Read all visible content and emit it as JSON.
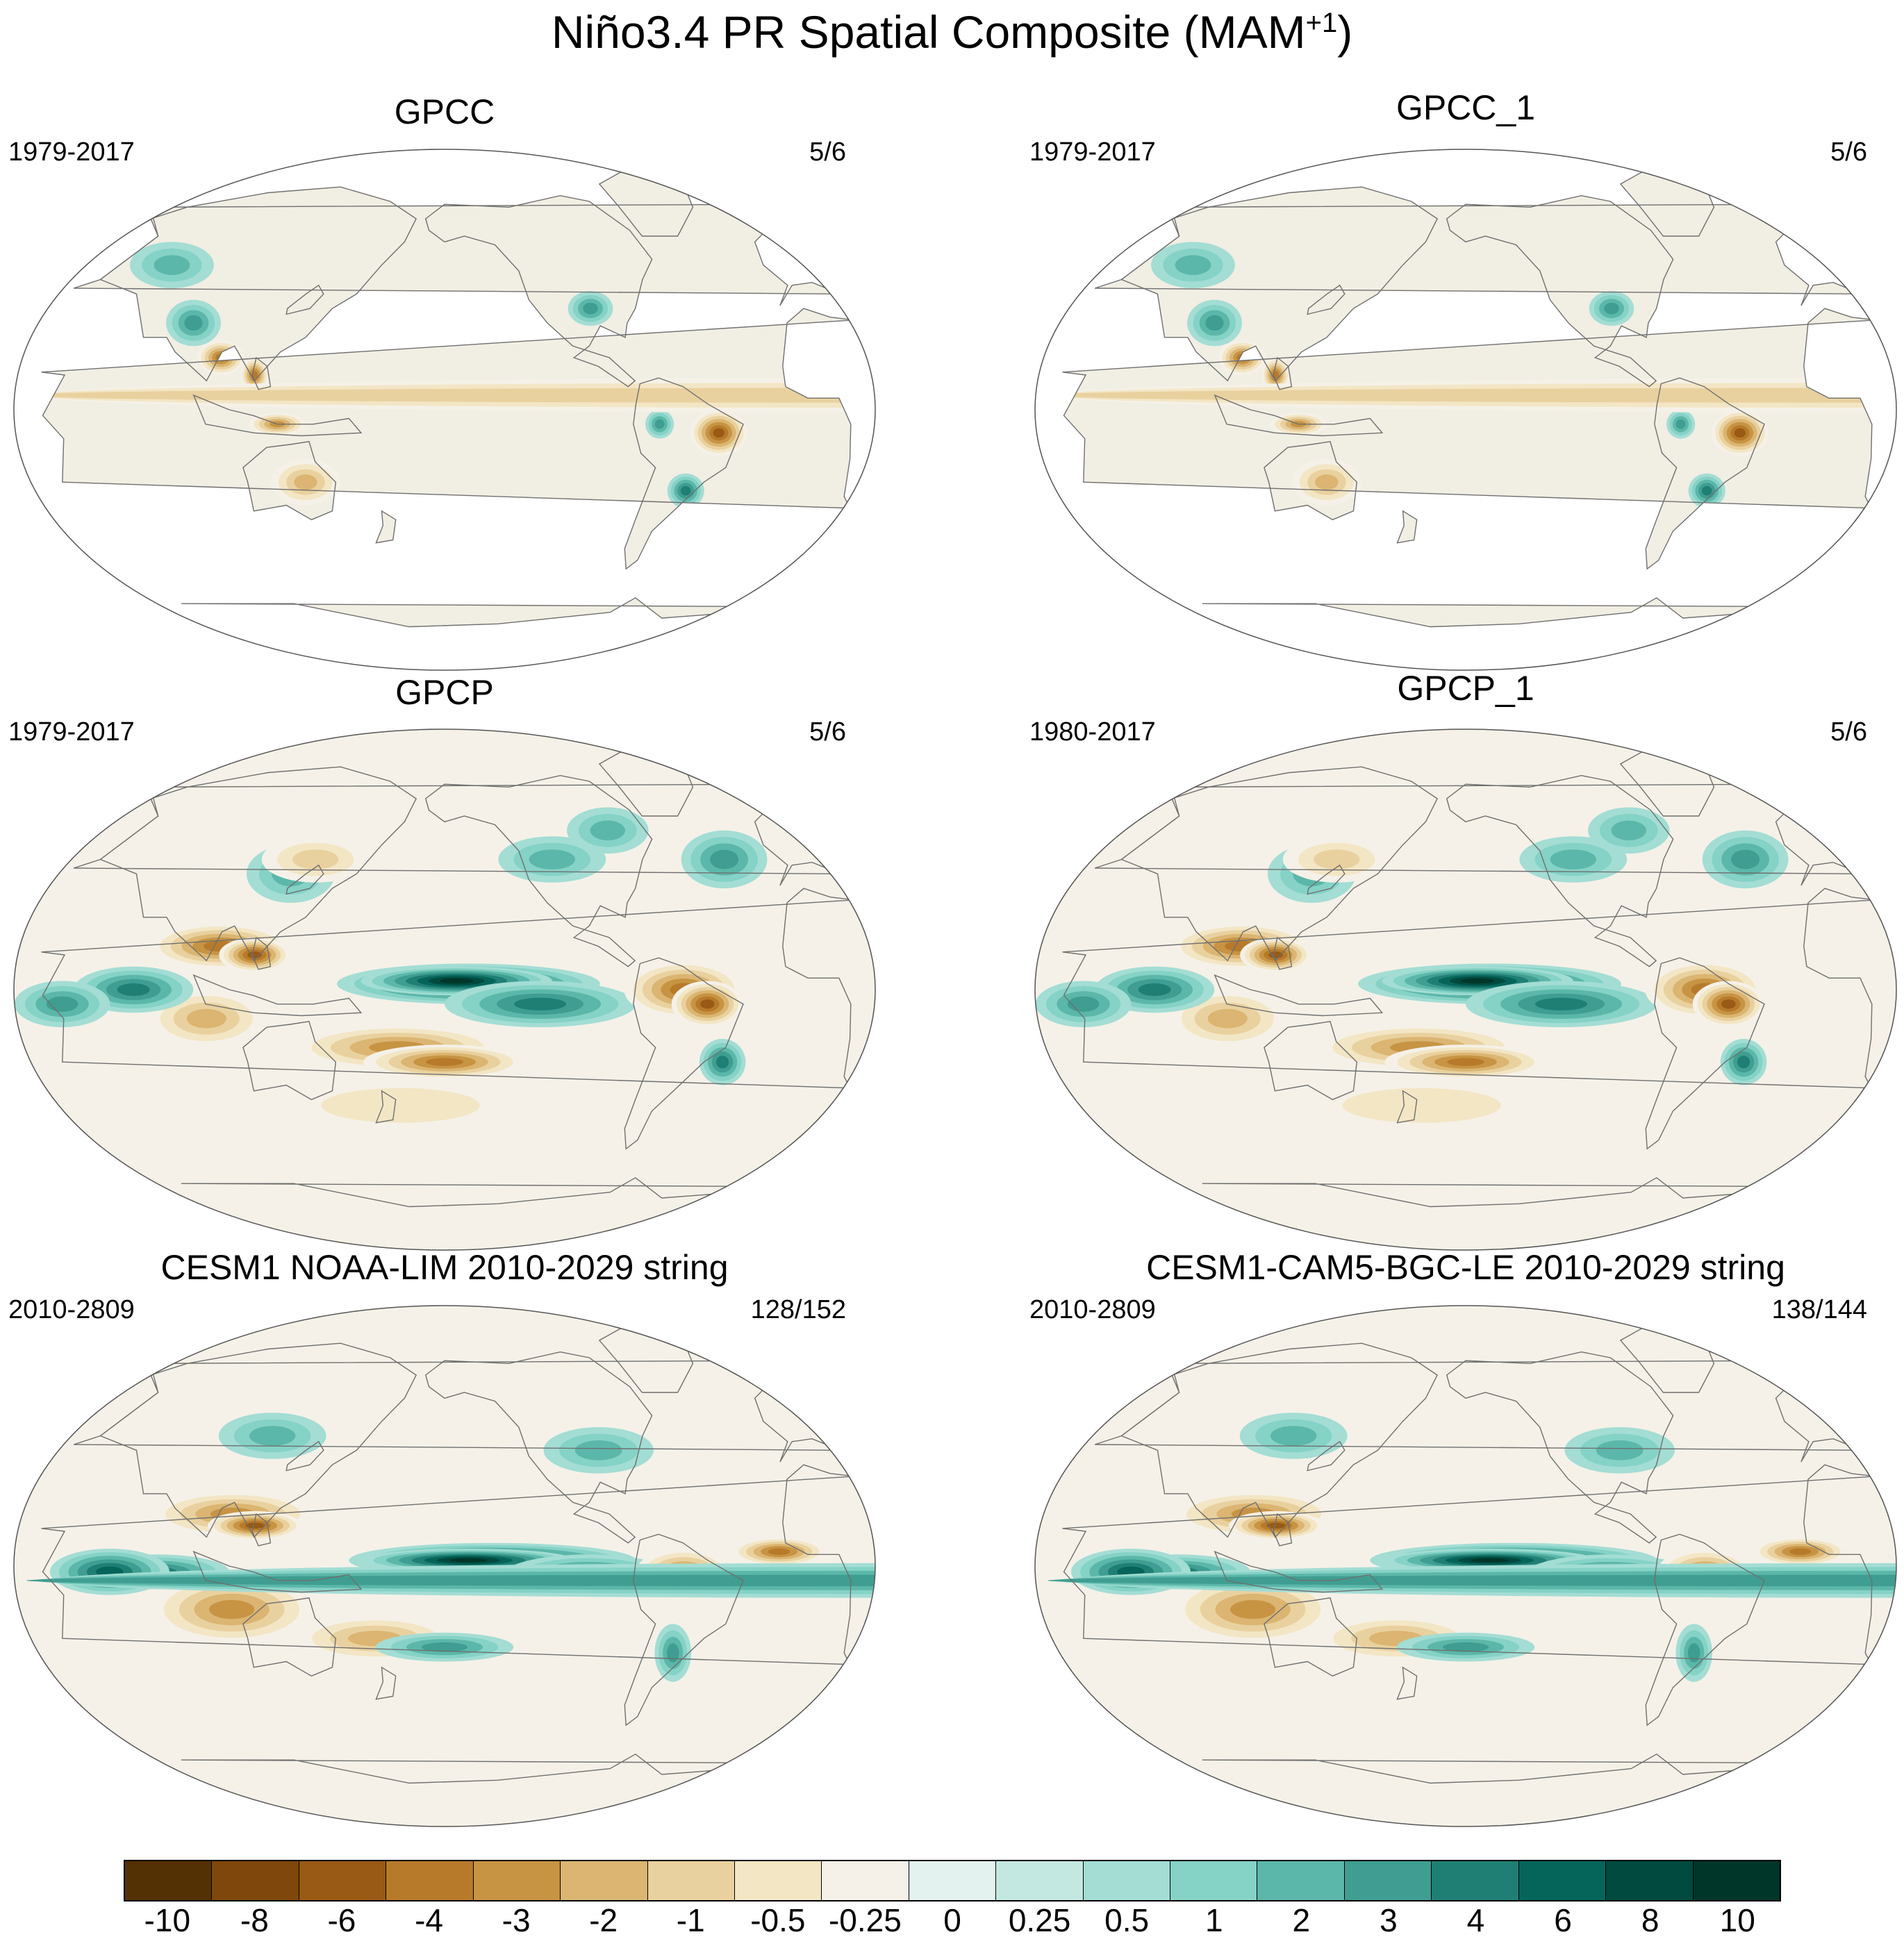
{
  "title": {
    "main": "Niño3.4 PR Spatial Composite (MAM",
    "sup": "+1",
    "end": ")"
  },
  "panels": [
    {
      "name": "GPCC",
      "period": "1979-2017",
      "count": "5/6",
      "coverage": "land"
    },
    {
      "name": "GPCC_1",
      "period": "1979-2017",
      "count": "5/6",
      "coverage": "land"
    },
    {
      "name": "GPCP",
      "period": "1979-2017",
      "count": "5/6",
      "coverage": "global"
    },
    {
      "name": "GPCP_1",
      "period": "1980-2017",
      "count": "5/6",
      "coverage": "global"
    },
    {
      "name": "CESM1 NOAA-LIM 2010-2029 string",
      "period": "2010-2809",
      "count": "128/152",
      "coverage": "global"
    },
    {
      "name": "CESM1-CAM5-BGC-LE 2010-2029 string",
      "period": "2010-2809",
      "count": "138/144",
      "coverage": "global"
    }
  ],
  "colorbar": {
    "labels": [
      "-10",
      "-8",
      "-6",
      "-4",
      "-3",
      "-2",
      "-1",
      "-0.5",
      "-0.25",
      "0",
      "0.25",
      "0.5",
      "1",
      "2",
      "3",
      "4",
      "6",
      "8",
      "10"
    ],
    "colors": [
      "#543005",
      "#7f470b",
      "#985a14",
      "#b77a2b",
      "#c79444",
      "#dbb571",
      "#e9d19f",
      "#f3e6c5",
      "#f5f1e8",
      "#e4f2ef",
      "#c3e8e1",
      "#a3ddd4",
      "#85d2c6",
      "#5bb7a9",
      "#3f9d91",
      "#1f7f74",
      "#05655b",
      "#004a3f",
      "#003529"
    ]
  }
}
